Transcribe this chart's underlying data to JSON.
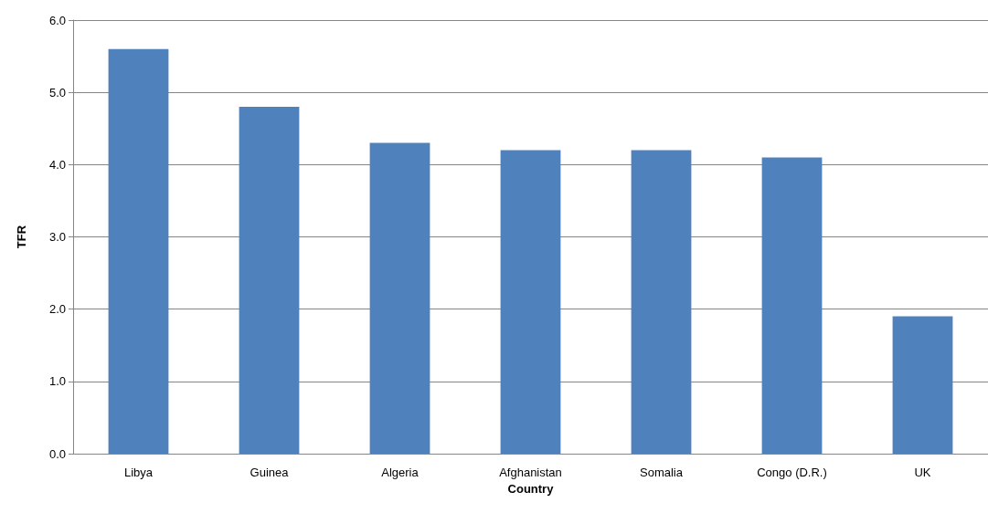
{
  "chart_data": {
    "type": "bar",
    "xlabel": "Country",
    "ylabel": "TFR",
    "categories": [
      "Libya",
      "Guinea",
      "Algeria",
      "Afghanistan",
      "Somalia",
      "Congo (D.R.)",
      "UK"
    ],
    "values": [
      5.6,
      4.8,
      4.3,
      4.2,
      4.2,
      4.1,
      1.9
    ],
    "color": "#4f81bd",
    "ylim": [
      0,
      6
    ],
    "yticks": [
      {
        "value": 0,
        "label": "0.0"
      },
      {
        "value": 1,
        "label": "1.0"
      },
      {
        "value": 2,
        "label": "2.0"
      },
      {
        "value": 3,
        "label": "3.0"
      },
      {
        "value": 4,
        "label": "4.0"
      },
      {
        "value": 5,
        "label": "5.0"
      },
      {
        "value": 6,
        "label": "6.0"
      }
    ],
    "grid": "y"
  }
}
